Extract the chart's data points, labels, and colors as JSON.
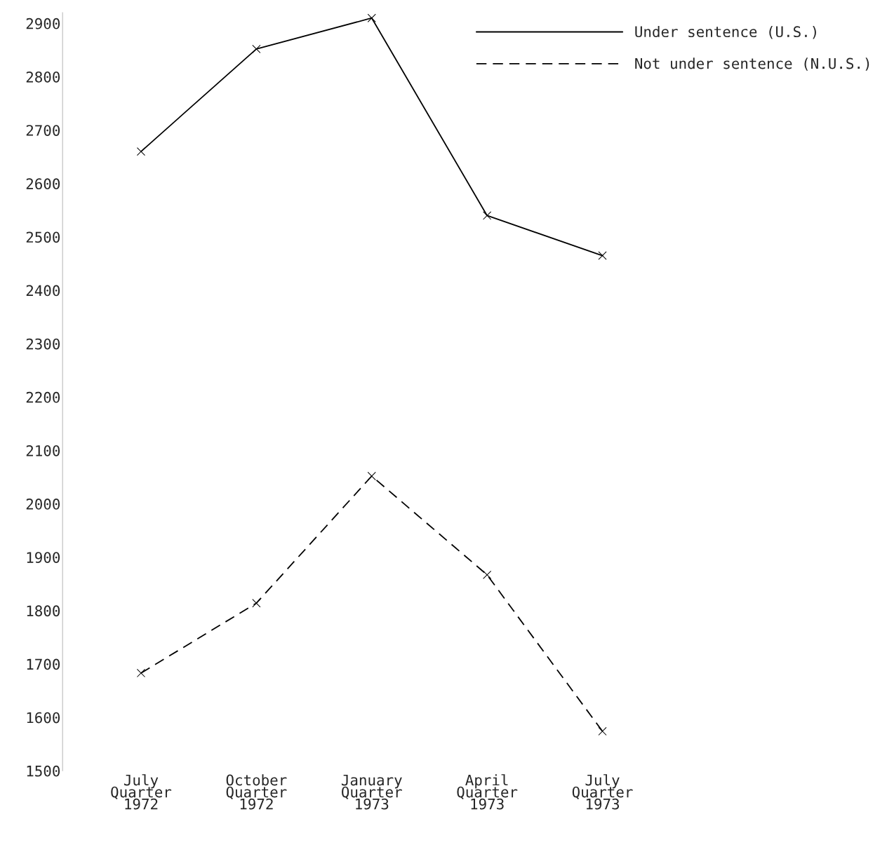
{
  "chart_data": {
    "type": "line",
    "categories": [
      "July\nQuarter\n1972",
      "October\nQuarter\n1972",
      "January\nQuarter\n1973",
      "April\nQuarter\n1973",
      "July\nQuarter\n1973"
    ],
    "series": [
      {
        "name": "Under sentence (U.S.)",
        "color": "#000000",
        "line_style": "solid",
        "values": [
          2660,
          2852,
          2910,
          2540,
          2465
        ]
      },
      {
        "name": "Not under sentence (N.U.S.)",
        "color": "#000000",
        "line_style": "dashed",
        "values": [
          1683,
          1814,
          2052,
          1867,
          1574
        ]
      }
    ],
    "ylim": [
      1500,
      2920
    ],
    "yticks": [
      1500,
      1600,
      1700,
      1800,
      1900,
      2000,
      2100,
      2200,
      2300,
      2400,
      2500,
      2600,
      2700,
      2800,
      2900
    ],
    "marker": "cross",
    "grid": false,
    "legend": "top right"
  }
}
